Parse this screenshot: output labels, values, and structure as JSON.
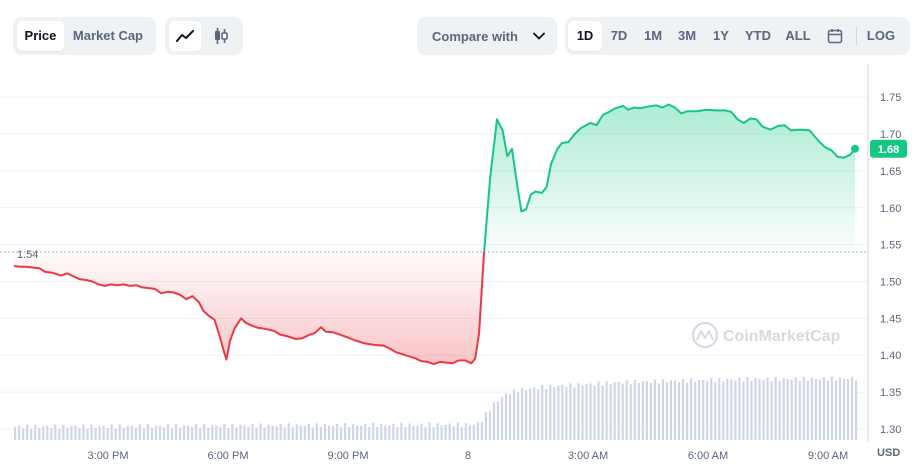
{
  "toolbar": {
    "type_tabs": [
      {
        "label": "Price",
        "active": true
      },
      {
        "label": "Market Cap",
        "active": false
      }
    ],
    "chart_modes": [
      {
        "icon": "line-chart-icon",
        "active": true
      },
      {
        "icon": "candlestick-icon",
        "active": false
      }
    ],
    "compare_label": "Compare with",
    "ranges": [
      {
        "label": "1D",
        "active": true
      },
      {
        "label": "7D",
        "active": false
      },
      {
        "label": "1M",
        "active": false
      },
      {
        "label": "3M",
        "active": false
      },
      {
        "label": "1Y",
        "active": false
      },
      {
        "label": "YTD",
        "active": false
      },
      {
        "label": "ALL",
        "active": false
      }
    ],
    "calendar_icon": "calendar-icon",
    "log_label": "LOG"
  },
  "chart_data": {
    "type": "line",
    "x_ticks": [
      "3:00 PM",
      "6:00 PM",
      "9:00 PM",
      "8",
      "3:00 AM",
      "6:00 AM",
      "9:00 AM"
    ],
    "y_ticks": [
      "1.75",
      "1.70",
      "1.65",
      "1.60",
      "1.55",
      "1.50",
      "1.45",
      "1.40",
      "1.35",
      "1.30"
    ],
    "ylim": [
      1.285,
      1.795
    ],
    "currency_label": "USD",
    "reference_price": 1.54,
    "reference_label": "1.54",
    "current_price": 1.68,
    "current_label": "1.68",
    "watermark": "CoinMarketCap",
    "colors": {
      "up": "#16c784",
      "down": "#ea3943",
      "volume": "#cfd6e4",
      "grid": "#eff2f5"
    },
    "price": [
      [
        0.0,
        1.521
      ],
      [
        0.2,
        1.52
      ],
      [
        0.4,
        1.52
      ],
      [
        0.6,
        1.519
      ],
      [
        0.8,
        1.518
      ],
      [
        1.0,
        1.513
      ],
      [
        1.2,
        1.512
      ],
      [
        1.5,
        1.508
      ],
      [
        1.7,
        1.511
      ],
      [
        1.9,
        1.507
      ],
      [
        2.1,
        1.503
      ],
      [
        2.3,
        1.502
      ],
      [
        2.5,
        1.5
      ],
      [
        2.7,
        1.496
      ],
      [
        2.9,
        1.494
      ],
      [
        3.1,
        1.496
      ],
      [
        3.3,
        1.495
      ],
      [
        3.5,
        1.496
      ],
      [
        3.7,
        1.494
      ],
      [
        3.9,
        1.495
      ],
      [
        4.1,
        1.492
      ],
      [
        4.3,
        1.491
      ],
      [
        4.5,
        1.49
      ],
      [
        4.7,
        1.484
      ],
      [
        4.9,
        1.486
      ],
      [
        5.1,
        1.485
      ],
      [
        5.3,
        1.482
      ],
      [
        5.5,
        1.476
      ],
      [
        5.7,
        1.48
      ],
      [
        5.9,
        1.472
      ],
      [
        6.05,
        1.46
      ],
      [
        6.2,
        1.454
      ],
      [
        6.4,
        1.448
      ],
      [
        6.55,
        1.428
      ],
      [
        6.7,
        1.405
      ],
      [
        6.78,
        1.394
      ],
      [
        6.9,
        1.42
      ],
      [
        7.05,
        1.437
      ],
      [
        7.25,
        1.45
      ],
      [
        7.4,
        1.444
      ],
      [
        7.6,
        1.44
      ],
      [
        7.8,
        1.437
      ],
      [
        8.0,
        1.436
      ],
      [
        8.3,
        1.433
      ],
      [
        8.5,
        1.428
      ],
      [
        8.7,
        1.426
      ],
      [
        9.0,
        1.422
      ],
      [
        9.2,
        1.423
      ],
      [
        9.4,
        1.427
      ],
      [
        9.6,
        1.43
      ],
      [
        9.8,
        1.438
      ],
      [
        9.95,
        1.432
      ],
      [
        10.2,
        1.431
      ],
      [
        10.4,
        1.428
      ],
      [
        10.6,
        1.425
      ],
      [
        10.9,
        1.42
      ],
      [
        11.2,
        1.416
      ],
      [
        11.5,
        1.414
      ],
      [
        11.8,
        1.413
      ],
      [
        12.0,
        1.409
      ],
      [
        12.2,
        1.404
      ],
      [
        12.5,
        1.4
      ],
      [
        12.8,
        1.396
      ],
      [
        13.0,
        1.392
      ],
      [
        13.2,
        1.391
      ],
      [
        13.4,
        1.388
      ],
      [
        13.6,
        1.391
      ],
      [
        13.8,
        1.39
      ],
      [
        14.0,
        1.389
      ],
      [
        14.2,
        1.393
      ],
      [
        14.4,
        1.393
      ],
      [
        14.6,
        1.389
      ],
      [
        14.72,
        1.395
      ],
      [
        14.85,
        1.43
      ],
      [
        15.0,
        1.535
      ],
      [
        15.2,
        1.64
      ],
      [
        15.42,
        1.72
      ],
      [
        15.6,
        1.705
      ],
      [
        15.75,
        1.67
      ],
      [
        15.9,
        1.68
      ],
      [
        16.05,
        1.635
      ],
      [
        16.2,
        1.595
      ],
      [
        16.35,
        1.598
      ],
      [
        16.5,
        1.618
      ],
      [
        16.65,
        1.622
      ],
      [
        16.85,
        1.62
      ],
      [
        17.0,
        1.628
      ],
      [
        17.15,
        1.66
      ],
      [
        17.35,
        1.68
      ],
      [
        17.5,
        1.688
      ],
      [
        17.7,
        1.689
      ],
      [
        17.9,
        1.7
      ],
      [
        18.1,
        1.708
      ],
      [
        18.4,
        1.715
      ],
      [
        18.6,
        1.712
      ],
      [
        18.8,
        1.726
      ],
      [
        19.0,
        1.73
      ],
      [
        19.2,
        1.735
      ],
      [
        19.45,
        1.738
      ],
      [
        19.6,
        1.733
      ],
      [
        19.8,
        1.736
      ],
      [
        20.0,
        1.735
      ],
      [
        20.2,
        1.737
      ],
      [
        20.5,
        1.739
      ],
      [
        20.7,
        1.736
      ],
      [
        20.9,
        1.74
      ],
      [
        21.1,
        1.736
      ],
      [
        21.3,
        1.728
      ],
      [
        21.5,
        1.731
      ],
      [
        21.8,
        1.731
      ],
      [
        22.1,
        1.733
      ],
      [
        22.4,
        1.732
      ],
      [
        22.7,
        1.732
      ],
      [
        22.9,
        1.73
      ],
      [
        23.1,
        1.72
      ],
      [
        23.3,
        1.715
      ],
      [
        23.5,
        1.721
      ],
      [
        23.7,
        1.72
      ],
      [
        23.9,
        1.71
      ],
      [
        24.15,
        1.706
      ],
      [
        24.4,
        1.711
      ],
      [
        24.6,
        1.712
      ],
      [
        24.8,
        1.705
      ],
      [
        25.1,
        1.706
      ],
      [
        25.4,
        1.705
      ],
      [
        25.7,
        1.69
      ],
      [
        25.9,
        1.682
      ],
      [
        26.1,
        1.678
      ],
      [
        26.3,
        1.669
      ],
      [
        26.5,
        1.668
      ],
      [
        26.7,
        1.672
      ],
      [
        26.85,
        1.68
      ]
    ],
    "volume": [
      [
        0.0,
        0.12
      ],
      [
        14.72,
        0.14
      ],
      [
        14.9,
        0.18
      ],
      [
        15.1,
        0.26
      ],
      [
        15.3,
        0.33
      ],
      [
        15.5,
        0.38
      ],
      [
        15.7,
        0.42
      ],
      [
        16.0,
        0.45
      ],
      [
        16.5,
        0.47
      ],
      [
        17.2,
        0.49
      ],
      [
        18.0,
        0.5
      ],
      [
        19.0,
        0.52
      ],
      [
        20.0,
        0.53
      ],
      [
        21.5,
        0.54
      ],
      [
        23.0,
        0.55
      ],
      [
        26.85,
        0.56
      ]
    ]
  }
}
